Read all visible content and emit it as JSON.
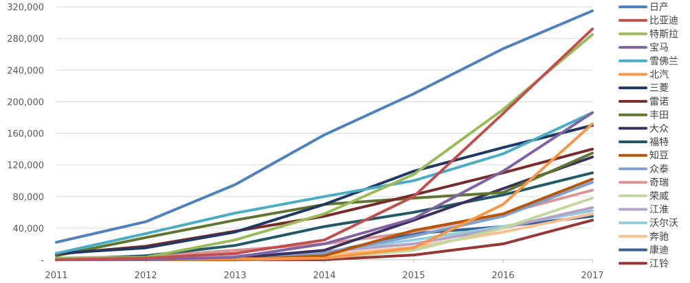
{
  "chart_data": {
    "type": "line",
    "title": "",
    "xlabel": "",
    "ylabel": "",
    "x": [
      "2011",
      "2012",
      "2013",
      "2014",
      "2015",
      "2016",
      "2017"
    ],
    "y_ticks": [
      "-",
      "40,000",
      "80,000",
      "120,000",
      "160,000",
      "200,000",
      "240,000",
      "280,000",
      "320,000"
    ],
    "ylim": [
      0,
      320000
    ],
    "grid": "horizontal",
    "legend_position": "right",
    "series": [
      {
        "name": "日产",
        "color": "#4F81BD",
        "values": [
          22000,
          48000,
          95000,
          158000,
          210000,
          267000,
          315000
        ]
      },
      {
        "name": "比亚迪",
        "color": "#C0504D",
        "values": [
          0,
          2000,
          8000,
          25000,
          80000,
          185000,
          292000
        ]
      },
      {
        "name": "特斯拉",
        "color": "#9BBB59",
        "values": [
          2000,
          3000,
          25000,
          58000,
          108000,
          190000,
          285000
        ]
      },
      {
        "name": "宝马",
        "color": "#8064A2",
        "values": [
          0,
          0,
          3000,
          20000,
          52000,
          112000,
          186000
        ]
      },
      {
        "name": "雪佛兰",
        "color": "#4BACC6",
        "values": [
          8000,
          33000,
          59000,
          80000,
          100000,
          134000,
          186000
        ]
      },
      {
        "name": "北汽",
        "color": "#F79646",
        "values": [
          0,
          0,
          1000,
          2000,
          15000,
          70000,
          172000
        ]
      },
      {
        "name": "三菱",
        "color": "#1F3864",
        "values": [
          8000,
          15000,
          35000,
          70000,
          112000,
          142000,
          170000
        ]
      },
      {
        "name": "雷诺",
        "color": "#772C2A",
        "values": [
          7000,
          17000,
          36000,
          55000,
          82000,
          110000,
          140000
        ]
      },
      {
        "name": "丰田",
        "color": "#5F7530",
        "values": [
          5000,
          28000,
          50000,
          70000,
          78000,
          85000,
          135000
        ]
      },
      {
        "name": "大众",
        "color": "#3D2F5B",
        "values": [
          0,
          0,
          2000,
          12000,
          50000,
          90000,
          130000
        ]
      },
      {
        "name": "福特",
        "color": "#215968",
        "values": [
          0,
          5000,
          18000,
          42000,
          60000,
          82000,
          110000
        ]
      },
      {
        "name": "知豆",
        "color": "#B65708",
        "values": [
          0,
          0,
          0,
          5000,
          37000,
          58000,
          102000
        ]
      },
      {
        "name": "众泰",
        "color": "#7F9FCF",
        "values": [
          0,
          0,
          2000,
          8000,
          30000,
          55000,
          98000
        ]
      },
      {
        "name": "奇瑞",
        "color": "#D99694",
        "values": [
          2000,
          4000,
          12000,
          20000,
          35000,
          58000,
          88000
        ]
      },
      {
        "name": "荣威",
        "color": "#C3D69B",
        "values": [
          0,
          0,
          0,
          2000,
          12000,
          40000,
          78000
        ]
      },
      {
        "name": "江淮",
        "color": "#B3A2C7",
        "values": [
          0,
          2000,
          5000,
          10000,
          20000,
          40000,
          66000
        ]
      },
      {
        "name": "沃尔沃",
        "color": "#92CDDC",
        "values": [
          0,
          1000,
          4000,
          10000,
          25000,
          42000,
          62000
        ]
      },
      {
        "name": "奔驰",
        "color": "#FAC090",
        "values": [
          0,
          0,
          2000,
          6000,
          16000,
          35000,
          58000
        ]
      },
      {
        "name": "康迪",
        "color": "#376092",
        "values": [
          0,
          0,
          0,
          8000,
          33000,
          42000,
          55000
        ]
      },
      {
        "name": "江铃",
        "color": "#953735",
        "values": [
          0,
          0,
          0,
          0,
          6000,
          20000,
          50000
        ]
      }
    ]
  }
}
